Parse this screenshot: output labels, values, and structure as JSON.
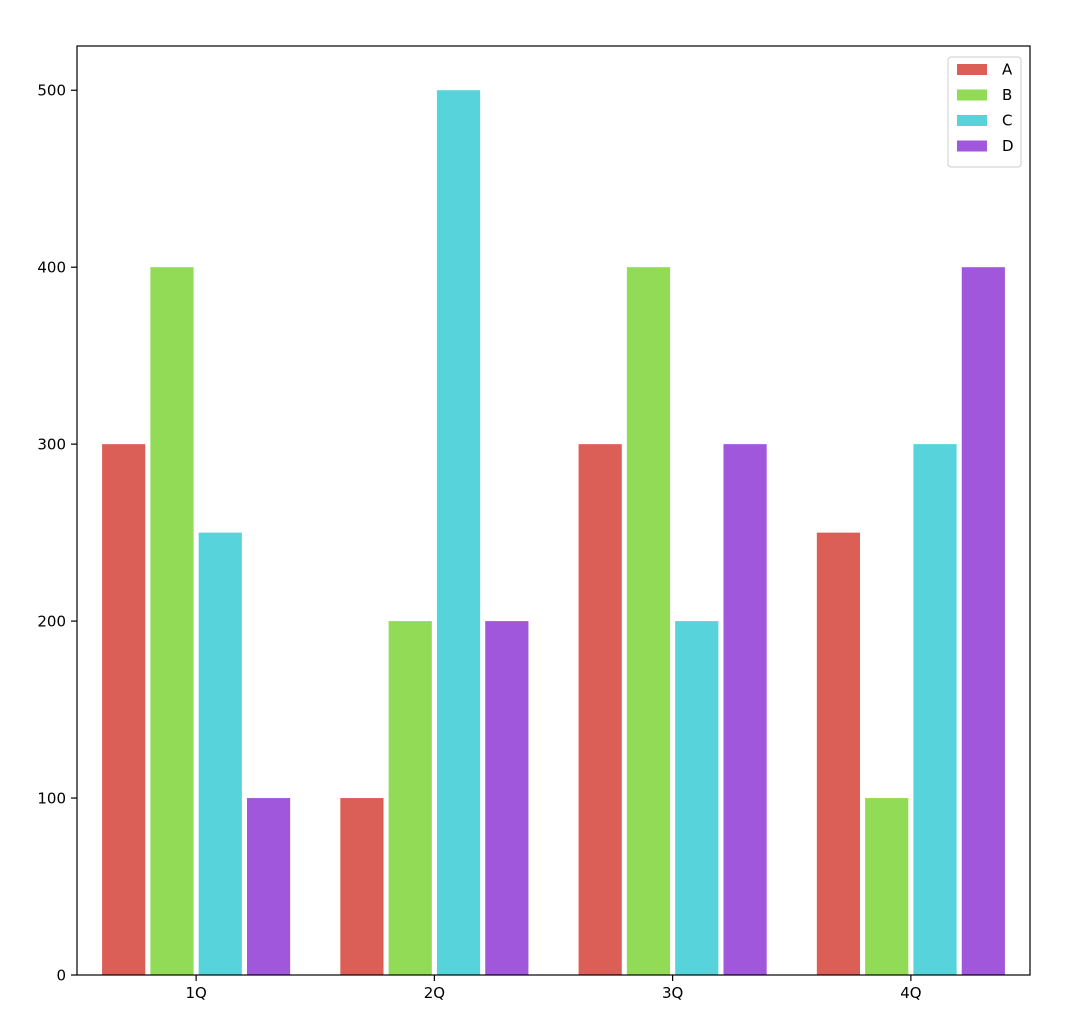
{
  "chart_data": {
    "type": "bar",
    "title": "",
    "xlabel": "",
    "ylabel": "",
    "categories": [
      "1Q",
      "2Q",
      "3Q",
      "4Q"
    ],
    "series": [
      {
        "name": "A",
        "color": "#db5f57",
        "values": [
          300,
          100,
          300,
          250
        ]
      },
      {
        "name": "B",
        "color": "#91db57",
        "values": [
          400,
          200,
          400,
          100
        ]
      },
      {
        "name": "C",
        "color": "#57d3db",
        "values": [
          250,
          500,
          200,
          300
        ]
      },
      {
        "name": "D",
        "color": "#a157db",
        "values": [
          100,
          200,
          300,
          400
        ]
      }
    ],
    "ylim": [
      0,
      525
    ],
    "yticks": [
      0,
      100,
      200,
      300,
      400,
      500
    ],
    "grid": false,
    "legend": "top-right"
  }
}
